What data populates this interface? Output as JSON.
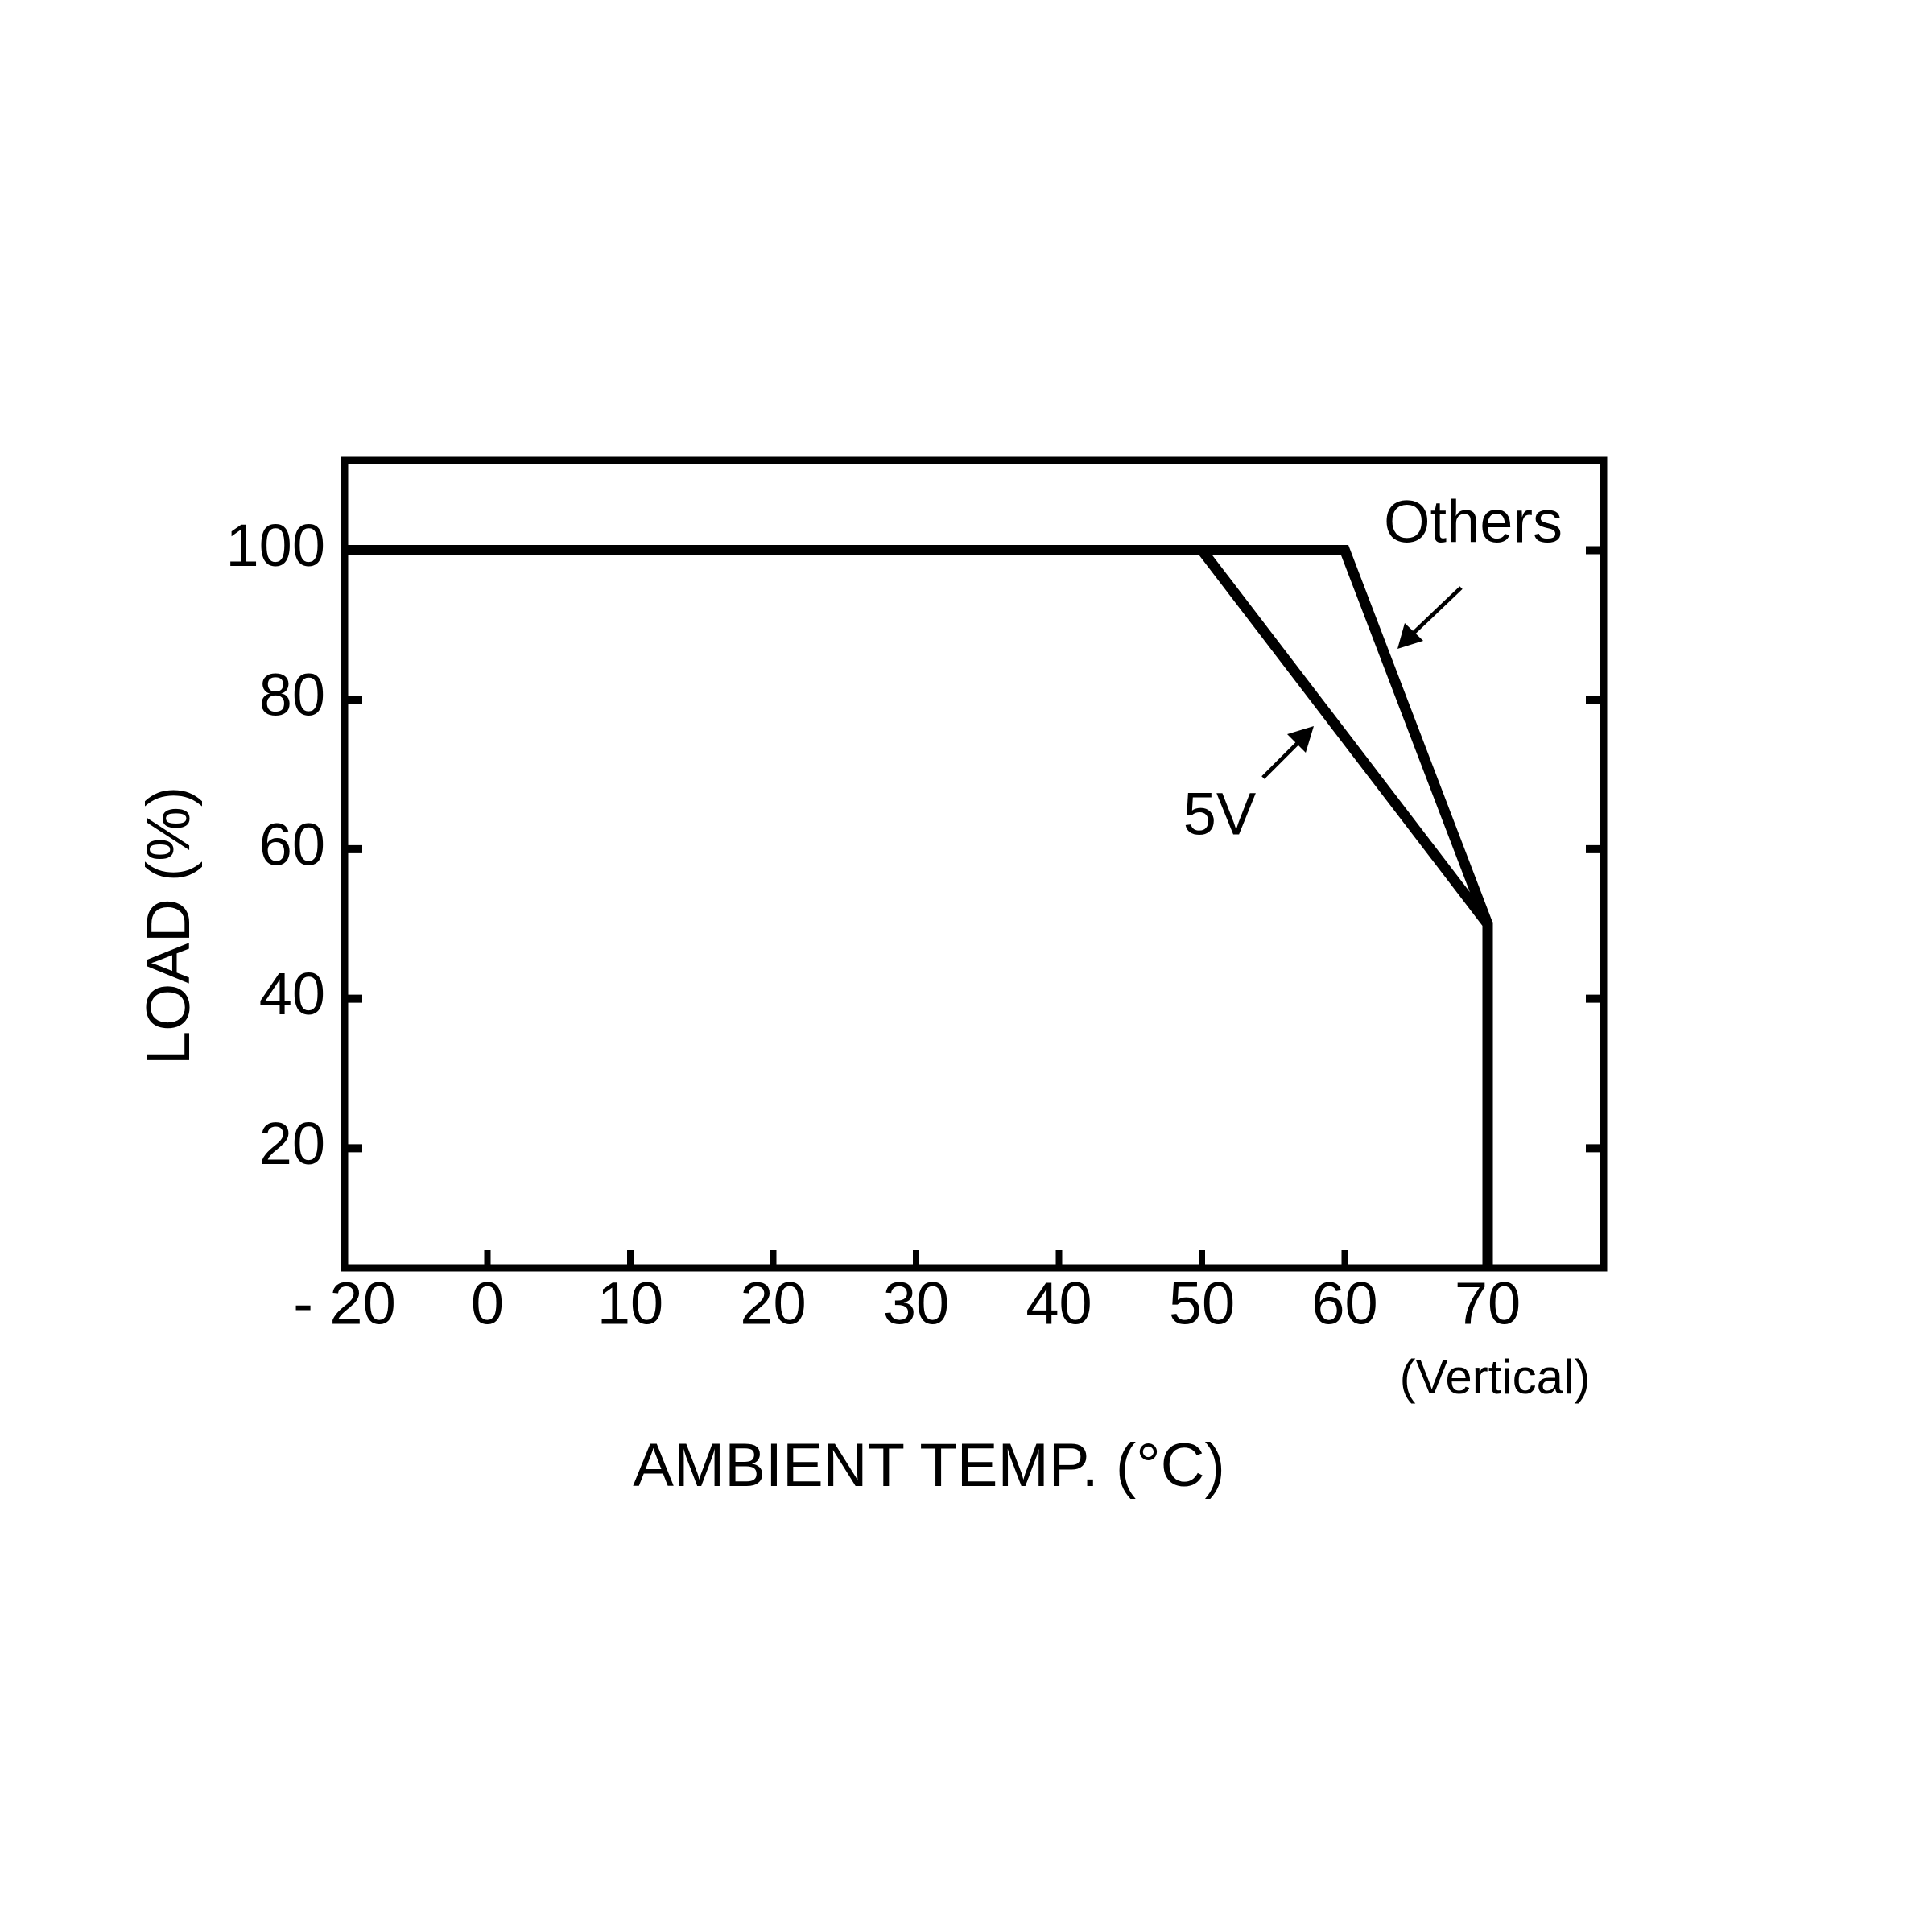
{
  "chart_data": {
    "type": "line",
    "x_label": "AMBIENT TEMP. (°C)",
    "x_note": "(Vertical)",
    "y_label": "LOAD (%)",
    "series": [
      {
        "name": "5V",
        "color": "#000000",
        "x": [
          -20,
          50,
          70,
          70
        ],
        "values": [
          100,
          100,
          50,
          4
        ]
      },
      {
        "name": "Others",
        "color": "#000000",
        "x": [
          -20,
          60,
          70,
          70
        ],
        "values": [
          100,
          100,
          50,
          4
        ]
      }
    ],
    "xlim": [
      -20,
      78
    ],
    "xticks": [
      {
        "value": -20,
        "label": "- 20"
      },
      0,
      10,
      20,
      30,
      40,
      50,
      60,
      70
    ],
    "ylim": [
      4,
      112
    ],
    "yticks": [
      20,
      40,
      60,
      80,
      100
    ],
    "grid": false
  }
}
